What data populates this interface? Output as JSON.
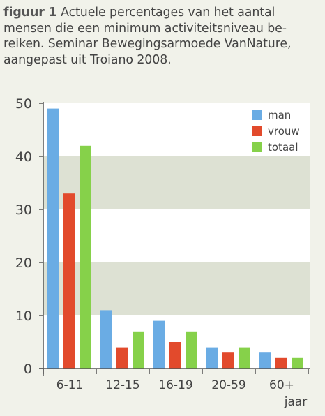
{
  "caption": {
    "label": "figuur 1",
    "line1": " Actuele percentages van het aantal",
    "line2": "mensen die een minimum activiteitsniveau be-",
    "line3": "reiken. Seminar Bewegingsarmoede VanNature,",
    "line4": "aangepast uit Troiano 2008."
  },
  "colors": {
    "man": "#6aace4",
    "vrouw": "#e24a2c",
    "totaal": "#86d14a",
    "band": "#dde1d3",
    "plot_bg": "#ffffff",
    "axis": "#555555"
  },
  "chart_data": {
    "type": "bar",
    "categories": [
      "6-11",
      "12-15",
      "16-19",
      "20-59",
      "60+"
    ],
    "xlabel": "jaar",
    "ylim": [
      0,
      50
    ],
    "yticks": [
      0,
      10,
      20,
      30,
      40,
      50
    ],
    "legend_position": "top-right",
    "series": [
      {
        "name": "man",
        "color": "#6aace4",
        "values": [
          49,
          11,
          9,
          4,
          3
        ]
      },
      {
        "name": "vrouw",
        "color": "#e24a2c",
        "values": [
          33,
          4,
          5,
          3,
          2
        ]
      },
      {
        "name": "totaal",
        "color": "#86d14a",
        "values": [
          42,
          7,
          7,
          4,
          2
        ]
      }
    ]
  }
}
